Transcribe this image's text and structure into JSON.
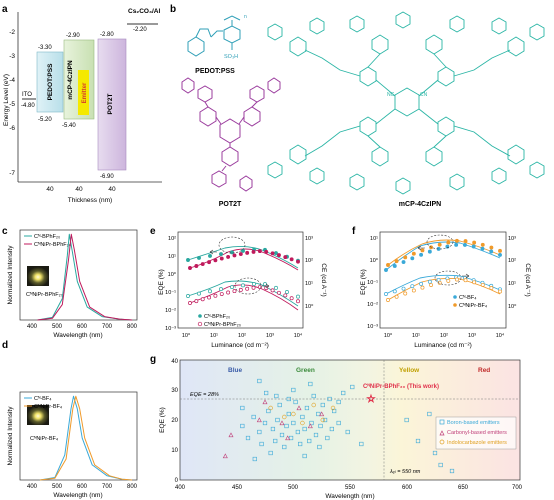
{
  "panel_letters": [
    "a",
    "b",
    "c",
    "d",
    "e",
    "f",
    "g"
  ],
  "panel_a": {
    "y_label": "Energy Level (eV)",
    "y_ticks": [
      "-2",
      "-3",
      "-4",
      "-5",
      "-6",
      "-7"
    ],
    "x_label": "Thickness (nm)",
    "x_ticks": [
      "40",
      "40",
      "40"
    ],
    "ito": {
      "name": "ITO",
      "value": "-4.80"
    },
    "cathode": {
      "name": "Cs₂CO₃/Al",
      "value": "-2.20"
    },
    "pedot": {
      "name": "PEDOT:PSS",
      "top": "-3.30",
      "bottom": "-5.20"
    },
    "host": {
      "name": "mCP-4CzIPN",
      "top": "-2.90",
      "bottom": "-5.40"
    },
    "emitter": {
      "name": "Emitter"
    },
    "pot2t": {
      "name": "POT2T",
      "top": "-2.80",
      "bottom": "-6.90"
    },
    "colors": {
      "pedot": "#c9e6f0",
      "host": "#d5e8c4",
      "emitter": "#f5e900",
      "pot2t": "#d9c8e6"
    }
  },
  "panel_b": {
    "labels": [
      "PEDOT:PSS",
      "POT2T",
      "mCP-4CzIPN"
    ],
    "pedot_so3h": "SO₃H",
    "pedot_n": "n",
    "cn": "NC",
    "cn2": "CN",
    "colors": {
      "pedot": "#2f9fb7",
      "pot2t": "#9b3d9e",
      "mcp": "#2ab5a5"
    }
  },
  "panel_c": {
    "y_label": "Normalized Intensity",
    "x_label": "Wavelength (nm)",
    "x_ticks": [
      "400",
      "500",
      "600",
      "700",
      "800"
    ],
    "legend": [
      "Cᴺ-BPhF₂₀",
      "CᴺNiPr-BPhF₂₀"
    ],
    "inset_label": "CᴺNiPr-BPhF₂₀",
    "chart_data": {
      "type": "line",
      "series": [
        {
          "name": "Cᴺ-BPhF₂₀",
          "color": "#2aa8a0",
          "peak": 548,
          "wl": [
            420,
            480,
            520,
            540,
            548,
            560,
            580,
            620,
            680,
            750,
            800
          ],
          "v": [
            0,
            0.03,
            0.25,
            0.75,
            1.0,
            0.8,
            0.45,
            0.15,
            0.04,
            0.01,
            0
          ]
        },
        {
          "name": "CᴺNiPr-BPhF₂₀",
          "color": "#c01a5c",
          "peak": 556,
          "wl": [
            420,
            480,
            520,
            545,
            556,
            568,
            590,
            630,
            690,
            750,
            800
          ],
          "v": [
            0,
            0.02,
            0.18,
            0.7,
            1.0,
            0.82,
            0.45,
            0.15,
            0.04,
            0.01,
            0
          ]
        }
      ],
      "xlim": [
        350,
        820
      ],
      "ylim": [
        0,
        1.05
      ]
    }
  },
  "panel_d": {
    "y_label": "Normalized Intensity",
    "x_label": "Wavelength (nm)",
    "x_ticks": [
      "400",
      "500",
      "600",
      "700",
      "800"
    ],
    "legend": [
      "Cᴺ-BF₄",
      "CᴺNiPr-BF₄"
    ],
    "inset_label": "CᴺNiPr-BF₄",
    "chart_data": {
      "type": "line",
      "series": [
        {
          "name": "Cᴺ-BF₄",
          "color": "#3aa9d8",
          "wl": [
            430,
            490,
            530,
            555,
            565,
            580,
            600,
            640,
            700,
            760,
            800
          ],
          "v": [
            0,
            0.03,
            0.3,
            0.85,
            1.0,
            0.85,
            0.5,
            0.18,
            0.05,
            0.01,
            0
          ]
        },
        {
          "name": "CᴺNiPr-BF₄",
          "color": "#f09a2a",
          "wl": [
            430,
            490,
            535,
            562,
            574,
            590,
            610,
            650,
            710,
            760,
            800
          ],
          "v": [
            0,
            0.02,
            0.25,
            0.85,
            1.0,
            0.85,
            0.5,
            0.18,
            0.05,
            0.01,
            0
          ]
        }
      ],
      "xlim": [
        350,
        820
      ],
      "ylim": [
        0,
        1.05
      ]
    }
  },
  "panel_e": {
    "y_label": "EQE (%)",
    "y2_label": "CE (cd A⁻¹)",
    "x_label": "Luminance (cd m⁻²)",
    "y_ticks": [
      "10²",
      "10¹",
      "10⁰",
      "10⁻¹",
      "10⁻²",
      "10⁻³"
    ],
    "y2_ticks": [
      "10³",
      "10²",
      "10¹",
      "10⁰"
    ],
    "x_ticks": [
      "10⁰",
      "10¹",
      "10²",
      "10³",
      "10⁴"
    ],
    "legend": [
      "Cᴺ-BPhF₂₀",
      "CᴺNiPr-BPhF₂₀"
    ],
    "colors": [
      "#2aa8a0",
      "#c01a5c"
    ]
  },
  "panel_f": {
    "y_label": "EQE (%)",
    "y2_label": "CE (cd A⁻¹)",
    "x_label": "Luminance (cd m⁻²)",
    "y_ticks": [
      "10¹",
      "10⁰",
      "10⁻¹",
      "10⁻²",
      "10⁻³"
    ],
    "y2_ticks": [
      "10³",
      "10²",
      "10¹",
      "10⁰"
    ],
    "x_ticks": [
      "10⁰",
      "10¹",
      "10²",
      "10³",
      "10⁴"
    ],
    "legend": [
      "Cᴺ-BF₄",
      "CᴺNiPr-BF₄"
    ],
    "colors": [
      "#3aa9d8",
      "#f09a2a"
    ]
  },
  "panel_g": {
    "y_label": "EQE (%)",
    "x_label": "Wavelength (nm)",
    "x_ticks": [
      "400",
      "450",
      "500",
      "550",
      "600",
      "650",
      "700"
    ],
    "y_ticks": [
      "0",
      "10",
      "20",
      "30",
      "40"
    ],
    "regions": [
      "Blue",
      "Green",
      "Yellow",
      "Red"
    ],
    "eqe_line": "EQE = 28%",
    "lambda_line": "λₑₗ = 550 nm",
    "highlight": "CᴺNiPr-BPhF₂₀ (This work)",
    "legend": [
      "Boron-based emitters",
      "Carbonyl-based emitters",
      "Indolocarbazole emitters"
    ],
    "colors": {
      "boron": "#3aa9d8",
      "carbonyl": "#c0407a",
      "indolo": "#e0a020",
      "star": "#e0304a"
    }
  }
}
